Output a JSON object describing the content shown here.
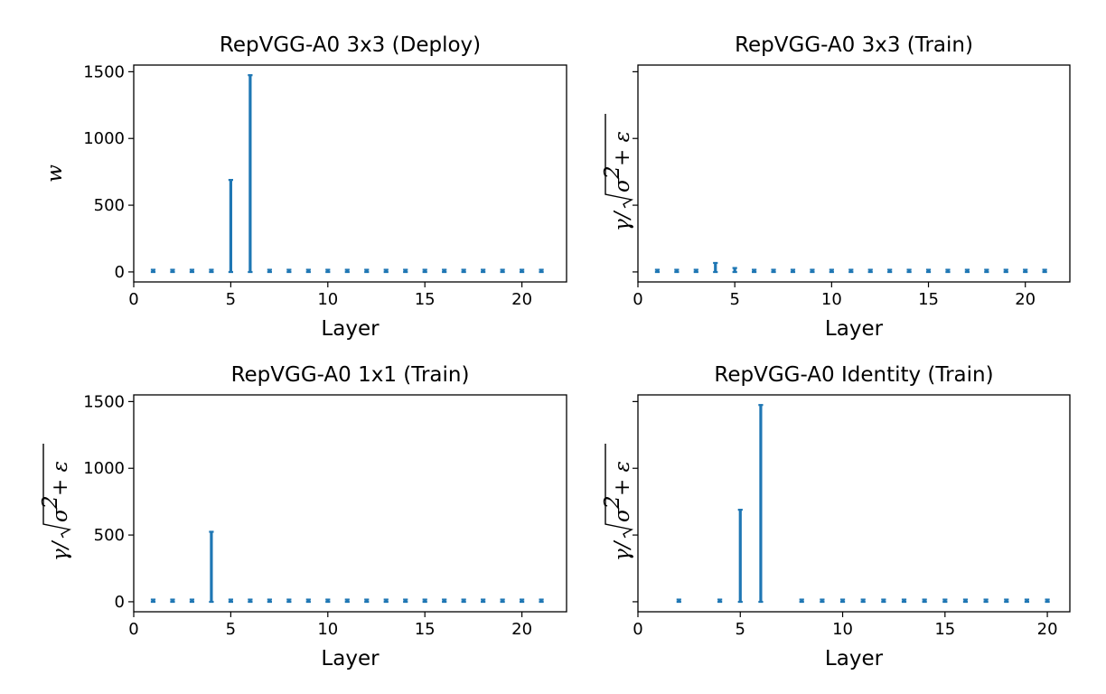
{
  "chart_data": [
    {
      "type": "bar",
      "title": "RepVGG-A0 3x3 (Deploy)",
      "xlabel": "Layer",
      "ylabel": "w",
      "xlim": [
        0,
        22.3
      ],
      "ylim": [
        -75,
        1550
      ],
      "xticks": [
        0,
        5,
        10,
        15,
        20
      ],
      "yticks": [
        0,
        500,
        1000,
        1500
      ],
      "show_ytick_labels": true,
      "series": [
        {
          "layers": [
            1,
            2,
            3,
            4,
            5,
            6,
            7,
            8,
            9,
            10,
            11,
            12,
            13,
            14,
            15,
            16,
            17,
            18,
            19,
            20,
            21
          ],
          "max": [
            2,
            3,
            2,
            12,
            690,
            1475,
            2,
            2,
            2,
            2,
            2,
            2,
            2,
            2,
            2,
            2,
            2,
            2,
            2,
            2,
            2
          ],
          "min": [
            0,
            0,
            0,
            0,
            0,
            0,
            0,
            0,
            0,
            0,
            0,
            0,
            0,
            0,
            0,
            0,
            0,
            0,
            0,
            0,
            0
          ]
        }
      ]
    },
    {
      "type": "bar",
      "title": "RepVGG-A0 3x3 (Train)",
      "xlabel": "Layer",
      "ylabel": "γ/√σ²+ε",
      "xlim": [
        0,
        22.3
      ],
      "ylim": [
        -75,
        1550
      ],
      "xticks": [
        0,
        5,
        10,
        15,
        20
      ],
      "yticks": [
        0,
        500,
        1000,
        1500
      ],
      "show_ytick_labels": false,
      "series": [
        {
          "layers": [
            1,
            2,
            3,
            4,
            5,
            6,
            7,
            8,
            9,
            10,
            11,
            12,
            13,
            14,
            15,
            16,
            17,
            18,
            19,
            20,
            21
          ],
          "max": [
            2,
            2,
            2,
            68,
            30,
            2,
            2,
            2,
            2,
            2,
            2,
            2,
            2,
            2,
            2,
            2,
            2,
            2,
            2,
            2,
            2
          ],
          "min": [
            0,
            0,
            0,
            0,
            0,
            0,
            0,
            0,
            0,
            0,
            0,
            0,
            0,
            0,
            0,
            0,
            0,
            0,
            0,
            0,
            0
          ]
        }
      ]
    },
    {
      "type": "bar",
      "title": "RepVGG-A0 1x1 (Train)",
      "xlabel": "Layer",
      "ylabel": "γ/√σ²+ε",
      "xlim": [
        0,
        22.3
      ],
      "ylim": [
        -75,
        1550
      ],
      "xticks": [
        0,
        5,
        10,
        15,
        20
      ],
      "yticks": [
        0,
        500,
        1000,
        1500
      ],
      "show_ytick_labels": true,
      "series": [
        {
          "layers": [
            1,
            2,
            3,
            4,
            5,
            6,
            7,
            8,
            9,
            10,
            11,
            12,
            13,
            14,
            15,
            16,
            17,
            18,
            19,
            20,
            21
          ],
          "max": [
            2,
            2,
            2,
            525,
            8,
            2,
            2,
            2,
            2,
            2,
            2,
            2,
            2,
            2,
            2,
            2,
            2,
            2,
            2,
            2,
            2
          ],
          "min": [
            0,
            0,
            0,
            0,
            0,
            0,
            0,
            0,
            0,
            0,
            0,
            0,
            0,
            0,
            0,
            0,
            0,
            0,
            0,
            0,
            0
          ]
        }
      ]
    },
    {
      "type": "bar",
      "title": "RepVGG-A0 Identity (Train)",
      "xlabel": "Layer",
      "ylabel": "γ/√σ²+ε",
      "xlim": [
        0,
        21.1
      ],
      "ylim": [
        -75,
        1550
      ],
      "xticks": [
        0,
        5,
        10,
        15,
        20
      ],
      "yticks": [
        0,
        500,
        1000,
        1500
      ],
      "show_ytick_labels": false,
      "series": [
        {
          "layers": [
            2,
            4,
            5,
            6,
            8,
            9,
            10,
            11,
            12,
            13,
            14,
            15,
            16,
            17,
            18,
            19,
            20
          ],
          "max": [
            3,
            10,
            690,
            1475,
            2,
            2,
            2,
            2,
            2,
            2,
            2,
            2,
            2,
            2,
            2,
            2,
            2
          ],
          "min": [
            0,
            0,
            0,
            0,
            0,
            0,
            0,
            0,
            0,
            0,
            0,
            0,
            0,
            0,
            0,
            0,
            0
          ]
        }
      ]
    }
  ],
  "colors": {
    "series": "#1f77b4",
    "axis": "#000000",
    "background": "#ffffff"
  }
}
